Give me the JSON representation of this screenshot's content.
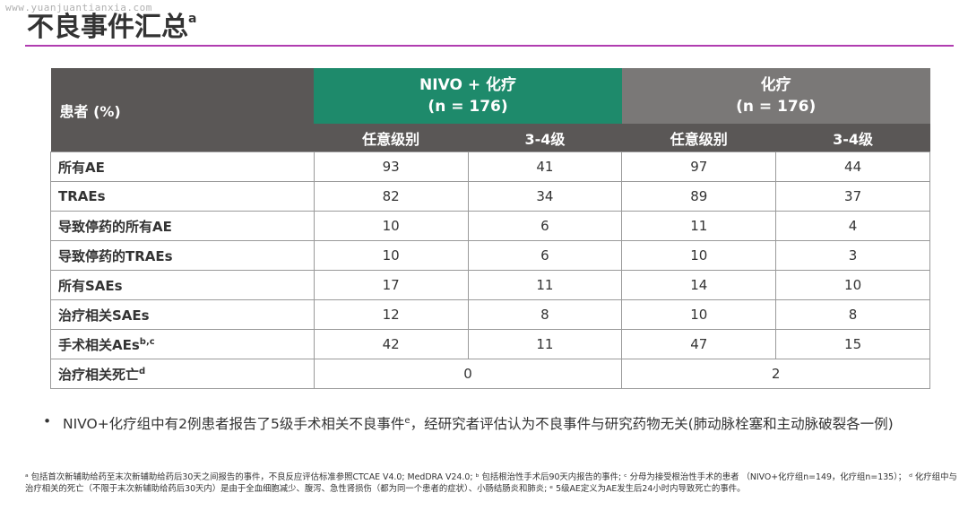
{
  "watermark": "www.yuanjuantianxia.com",
  "title": "不良事件汇总",
  "title_sup": "a",
  "table": {
    "row_header": "患者 (%)",
    "groups": [
      {
        "line1": "NIVO + 化疗",
        "line2": "(n = 176)"
      },
      {
        "line1": "化疗",
        "line2": "(n = 176)"
      }
    ],
    "subheaders": [
      "任意级别",
      "3-4级",
      "任意级别",
      "3-4级"
    ],
    "rows": [
      {
        "label": "所有AE",
        "sup": "",
        "cells": [
          "93",
          "41",
          "97",
          "44"
        ]
      },
      {
        "label": "TRAEs",
        "sup": "",
        "cells": [
          "82",
          "34",
          "89",
          "37"
        ]
      },
      {
        "label": "导致停药的所有AE",
        "sup": "",
        "cells": [
          "10",
          "6",
          "11",
          "4"
        ]
      },
      {
        "label": "导致停药的TRAEs",
        "sup": "",
        "cells": [
          "10",
          "6",
          "10",
          "3"
        ]
      },
      {
        "label": "所有SAEs",
        "sup": "",
        "cells": [
          "17",
          "11",
          "14",
          "10"
        ]
      },
      {
        "label": "治疗相关SAEs",
        "sup": "",
        "cells": [
          "12",
          "8",
          "10",
          "8"
        ]
      },
      {
        "label": "手术相关AEs",
        "sup": "b,c",
        "cells": [
          "42",
          "11",
          "47",
          "15"
        ]
      }
    ],
    "death_row": {
      "label": "治疗相关死亡",
      "sup": "d",
      "nivo": "0",
      "chemo": "2"
    }
  },
  "bullet": {
    "symbol": "•",
    "text_before": "NIVO+化疗组中有2例患者报告了5级手术相关不良事件",
    "sup": "e",
    "text_after": "，经研究者评估认为不良事件与研究药物无关(肺动脉栓塞和主动脉破裂各一例)"
  },
  "footnote": "ᵃ 包括首次新辅助给药至末次新辅助给药后30天之间报告的事件，不良反应评估标准参照CTCAE V4.0; MedDRA V24.0; ᵇ 包括根治性手术后90天内报告的事件; ᶜ 分母为接受根治性手术的患者 （NIVO+化疗组n=149，化疗组n=135）； ᵈ 化疗组中与治疗相关的死亡（不限于末次新辅助给药后30天内）是由于全血细胞减少、腹泻、急性肾损伤（都为同一个患者的症状）、小肠结肠炎和肺炎; ᵉ 5级AE定义为AE发生后24小时内导致死亡的事件。"
}
